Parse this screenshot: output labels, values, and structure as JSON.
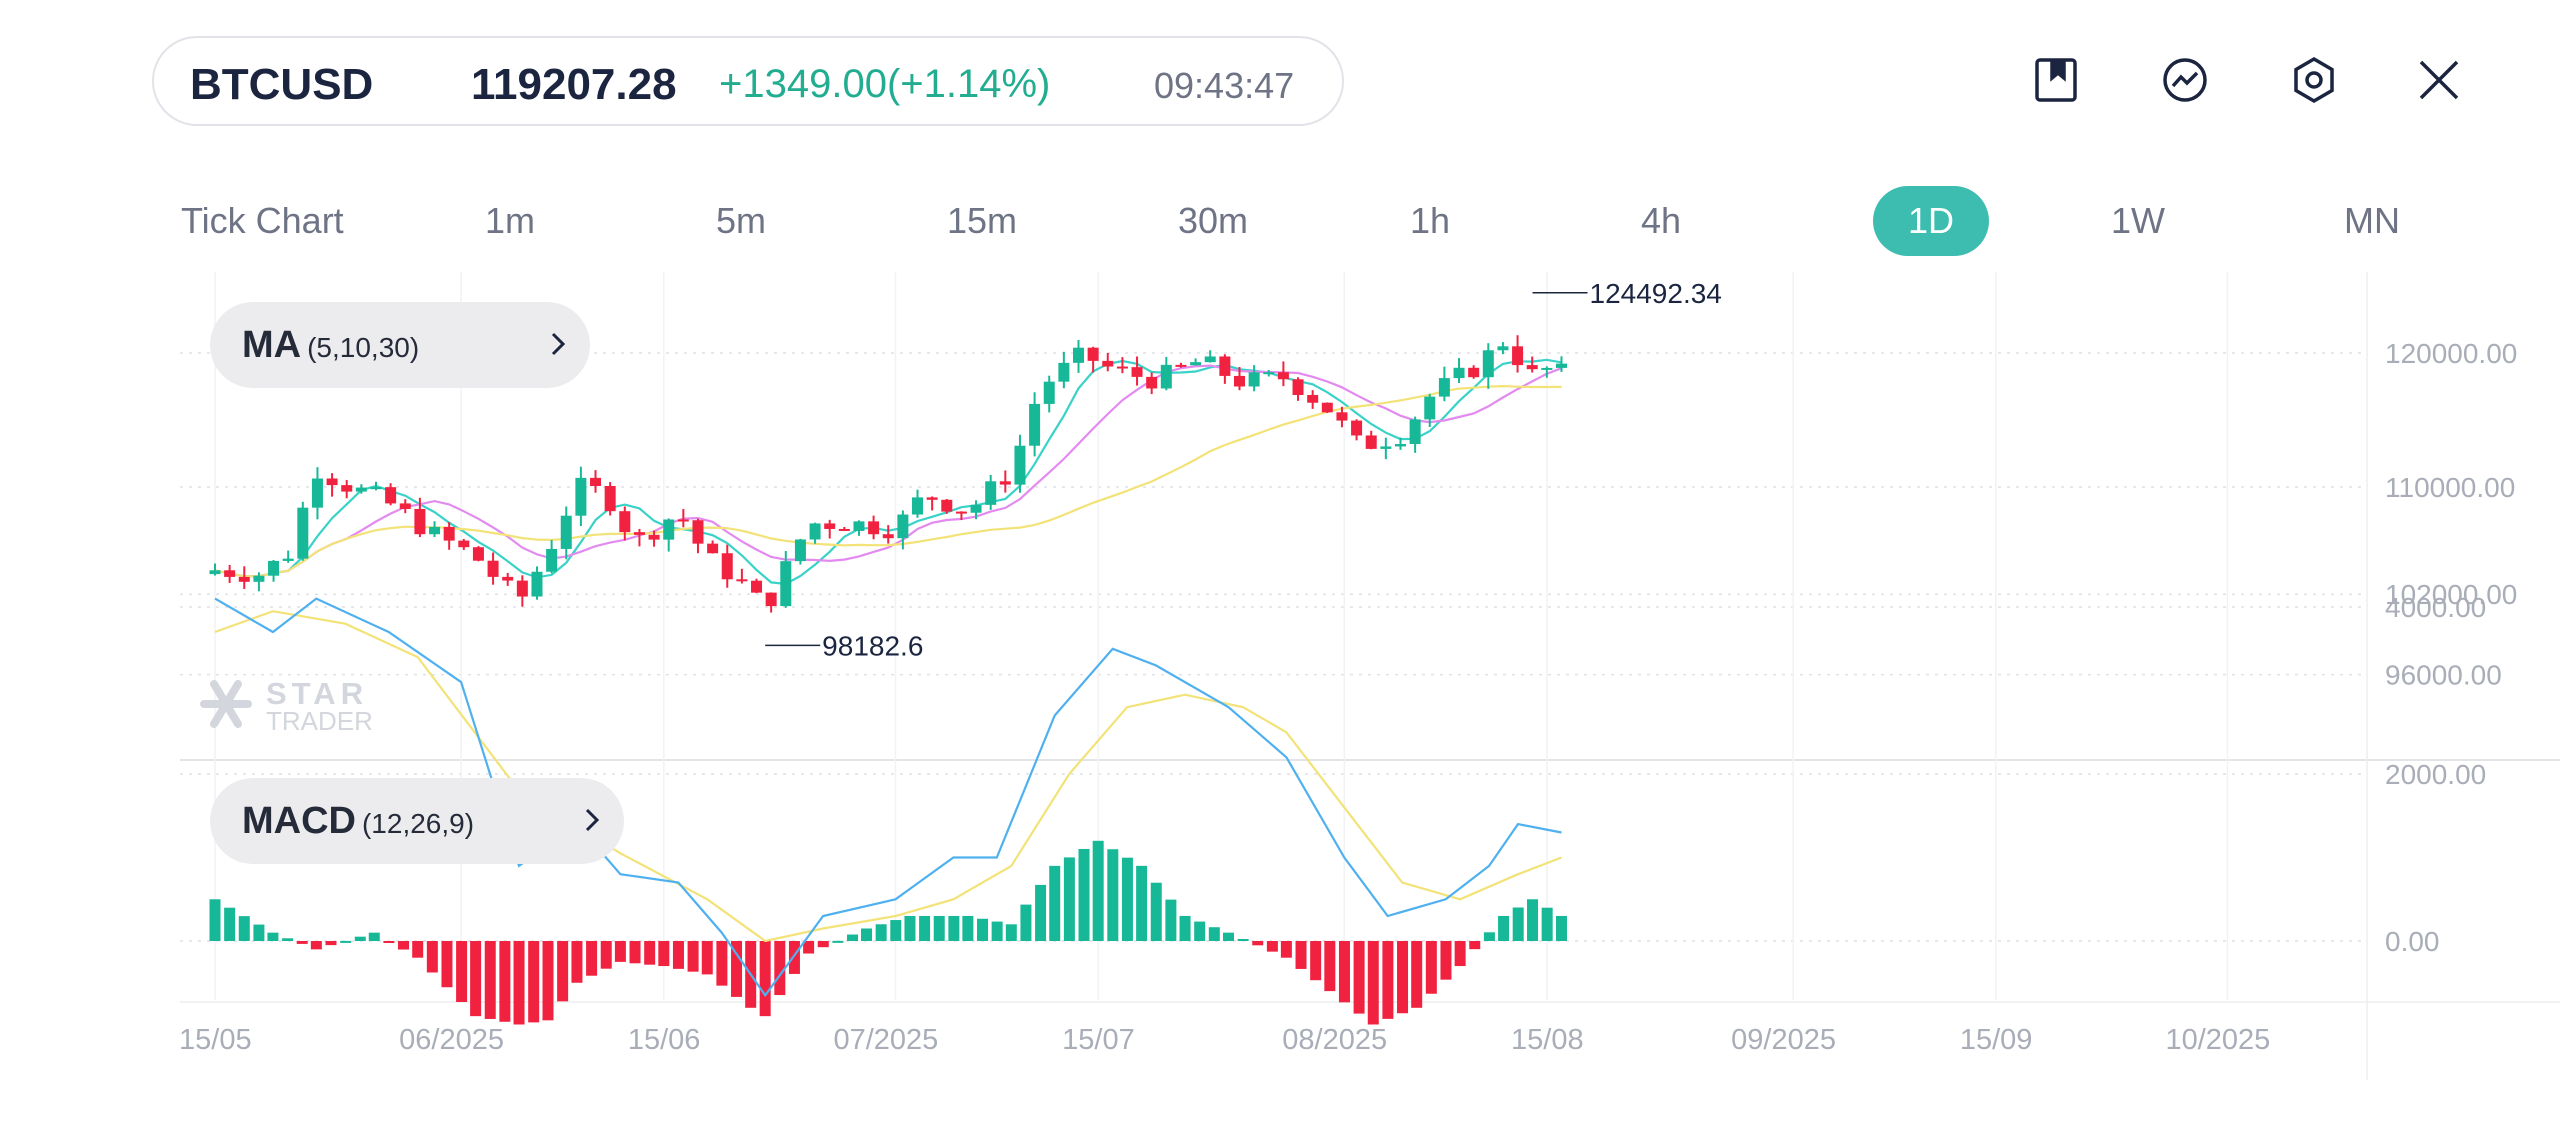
{
  "header": {
    "symbol": "BTCUSD",
    "price": "119207.28",
    "change": "+1349.00(+1.14%)",
    "time": "09:43:47",
    "icons": [
      "bookmark-icon",
      "trend-icon",
      "settings-hexagon-icon",
      "close-icon"
    ]
  },
  "timeframes": {
    "items": [
      "Tick Chart",
      "1m",
      "5m",
      "15m",
      "30m",
      "1h",
      "4h",
      "1D",
      "1W",
      "MN"
    ],
    "active": "1D"
  },
  "indicators": {
    "ma_label": "MA",
    "ma_params": "(5,10,30)",
    "macd_label": "MACD",
    "macd_params": "(12,26,9)"
  },
  "watermark": {
    "line1": "STAR",
    "line2": "TRADER"
  },
  "colors": {
    "accent": "#3dbdb0",
    "up": "#17b897",
    "down": "#f0223f",
    "ma5": "#38d2c9",
    "ma10": "#e38af0",
    "ma30": "#f2e277",
    "macd": "#4fb0f0",
    "signal": "#f2e277"
  },
  "chart_data": [
    {
      "type": "candlestick",
      "title": "",
      "price_axis": {
        "ticks": [
          "120000.00",
          "110000.00",
          "102000.00",
          "96000.00"
        ],
        "tick_values": [
          120000,
          110000,
          102000,
          96000
        ]
      },
      "date_axis": {
        "ticks": [
          "15/05",
          "06/2025",
          "15/06",
          "07/2025",
          "15/07",
          "08/2025",
          "15/08",
          "09/2025",
          "15/09",
          "10/2025"
        ],
        "tick_dates": [
          "2025-05-15",
          "2025-06-01",
          "2025-06-15",
          "2025-07-01",
          "2025-07-15",
          "2025-08-01",
          "2025-08-15",
          "2025-09-01",
          "2025-09-15",
          "2025-10-01"
        ]
      },
      "annotations": [
        {
          "label": "124492.34",
          "kind": "high",
          "date": "2025-08-14",
          "value": 124492.34
        },
        {
          "label": "98182.6",
          "kind": "low",
          "date": "2025-06-22",
          "value": 98182.6
        }
      ],
      "ma_periods": [
        5,
        10,
        30
      ],
      "series": [
        {
          "date": "2025-05-15",
          "close": 103800
        },
        {
          "date": "2025-05-18",
          "close": 103500
        },
        {
          "date": "2025-05-20",
          "close": 104900
        },
        {
          "date": "2025-05-22",
          "close": 111400
        },
        {
          "date": "2025-05-24",
          "close": 110200
        },
        {
          "date": "2025-05-27",
          "close": 108800
        },
        {
          "date": "2025-05-30",
          "close": 106500
        },
        {
          "date": "2025-06-02",
          "close": 104800
        },
        {
          "date": "2025-06-05",
          "close": 101400
        },
        {
          "date": "2025-06-07",
          "close": 105200
        },
        {
          "date": "2025-06-09",
          "close": 110000
        },
        {
          "date": "2025-06-11",
          "close": 109500
        },
        {
          "date": "2025-06-13",
          "close": 105800
        },
        {
          "date": "2025-06-16",
          "close": 108200
        },
        {
          "date": "2025-06-18",
          "close": 104700
        },
        {
          "date": "2025-06-20",
          "close": 103200
        },
        {
          "date": "2025-06-22",
          "close": 100900
        },
        {
          "date": "2025-06-25",
          "close": 107300
        },
        {
          "date": "2025-06-28",
          "close": 107300
        },
        {
          "date": "2025-07-01",
          "close": 106900
        },
        {
          "date": "2025-07-03",
          "close": 109500
        },
        {
          "date": "2025-07-06",
          "close": 108200
        },
        {
          "date": "2025-07-09",
          "close": 111200
        },
        {
          "date": "2025-07-11",
          "close": 117500
        },
        {
          "date": "2025-07-14",
          "close": 119900
        },
        {
          "date": "2025-07-16",
          "close": 118700
        },
        {
          "date": "2025-07-19",
          "close": 118000
        },
        {
          "date": "2025-07-22",
          "close": 119400
        },
        {
          "date": "2025-07-25",
          "close": 117800
        },
        {
          "date": "2025-07-28",
          "close": 118200
        },
        {
          "date": "2025-07-31",
          "close": 115700
        },
        {
          "date": "2025-08-02",
          "close": 113000
        },
        {
          "date": "2025-08-05",
          "close": 114000
        },
        {
          "date": "2025-08-07",
          "close": 116900
        },
        {
          "date": "2025-08-10",
          "close": 118900
        },
        {
          "date": "2025-08-12",
          "close": 120900
        },
        {
          "date": "2025-08-14",
          "close": 118300
        },
        {
          "date": "2025-08-16",
          "close": 119207.28
        }
      ]
    },
    {
      "type": "macd",
      "params": "(12,26,9)",
      "axis": {
        "ticks": [
          "4000.00",
          "2000.00",
          "0.00"
        ],
        "tick_values": [
          4000,
          2000,
          0
        ]
      },
      "series": [
        {
          "name": "MACD",
          "points": [
            [
              "2025-05-15",
              4100
            ],
            [
              "2025-05-19",
              3700
            ],
            [
              "2025-05-22",
              4100
            ],
            [
              "2025-05-27",
              3700
            ],
            [
              "2025-06-01",
              3100
            ],
            [
              "2025-06-05",
              900
            ],
            [
              "2025-06-09",
              1400
            ],
            [
              "2025-06-12",
              800
            ],
            [
              "2025-06-16",
              700
            ],
            [
              "2025-06-19",
              100
            ],
            [
              "2025-06-22",
              -650
            ],
            [
              "2025-06-26",
              300
            ],
            [
              "2025-07-01",
              500
            ],
            [
              "2025-07-05",
              1000
            ],
            [
              "2025-07-08",
              1000
            ],
            [
              "2025-07-12",
              2700
            ],
            [
              "2025-07-16",
              3500
            ],
            [
              "2025-07-19",
              3300
            ],
            [
              "2025-07-24",
              2800
            ],
            [
              "2025-07-28",
              2200
            ],
            [
              "2025-08-01",
              1000
            ],
            [
              "2025-08-04",
              300
            ],
            [
              "2025-08-08",
              500
            ],
            [
              "2025-08-11",
              900
            ],
            [
              "2025-08-13",
              1400
            ],
            [
              "2025-08-16",
              1300
            ]
          ]
        },
        {
          "name": "Signal",
          "points": [
            [
              "2025-05-15",
              3700
            ],
            [
              "2025-05-19",
              3950
            ],
            [
              "2025-05-24",
              3800
            ],
            [
              "2025-05-29",
              3400
            ],
            [
              "2025-06-05",
              1800
            ],
            [
              "2025-06-12",
              1050
            ],
            [
              "2025-06-18",
              500
            ],
            [
              "2025-06-22",
              0
            ],
            [
              "2025-06-26",
              150
            ],
            [
              "2025-07-01",
              300
            ],
            [
              "2025-07-05",
              500
            ],
            [
              "2025-07-09",
              900
            ],
            [
              "2025-07-13",
              2000
            ],
            [
              "2025-07-17",
              2800
            ],
            [
              "2025-07-21",
              2950
            ],
            [
              "2025-07-25",
              2800
            ],
            [
              "2025-07-28",
              2500
            ],
            [
              "2025-08-01",
              1600
            ],
            [
              "2025-08-05",
              700
            ],
            [
              "2025-08-09",
              500
            ],
            [
              "2025-08-13",
              800
            ],
            [
              "2025-08-16",
              1000
            ]
          ]
        },
        {
          "name": "Histogram",
          "points": [
            [
              "2025-05-15",
              500
            ],
            [
              "2025-05-19",
              100
            ],
            [
              "2025-05-22",
              -100
            ],
            [
              "2025-05-26",
              100
            ],
            [
              "2025-05-29",
              -200
            ],
            [
              "2025-06-02",
              -900
            ],
            [
              "2025-06-05",
              -1000
            ],
            [
              "2025-06-07",
              -950
            ],
            [
              "2025-06-09",
              -500
            ],
            [
              "2025-06-12",
              -250
            ],
            [
              "2025-06-15",
              -300
            ],
            [
              "2025-06-18",
              -400
            ],
            [
              "2025-06-21",
              -800
            ],
            [
              "2025-06-22",
              -900
            ],
            [
              "2025-06-25",
              -150
            ],
            [
              "2025-06-29",
              150
            ],
            [
              "2025-07-02",
              300
            ],
            [
              "2025-07-06",
              300
            ],
            [
              "2025-07-09",
              200
            ],
            [
              "2025-07-12",
              900
            ],
            [
              "2025-07-15",
              1200
            ],
            [
              "2025-07-18",
              900
            ],
            [
              "2025-07-21",
              300
            ],
            [
              "2025-07-24",
              100
            ],
            [
              "2025-07-28",
              -200
            ],
            [
              "2025-07-31",
              -600
            ],
            [
              "2025-08-03",
              -1000
            ],
            [
              "2025-08-06",
              -800
            ],
            [
              "2025-08-09",
              -300
            ],
            [
              "2025-08-12",
              300
            ],
            [
              "2025-08-14",
              500
            ],
            [
              "2025-08-16",
              300
            ]
          ]
        }
      ]
    }
  ]
}
